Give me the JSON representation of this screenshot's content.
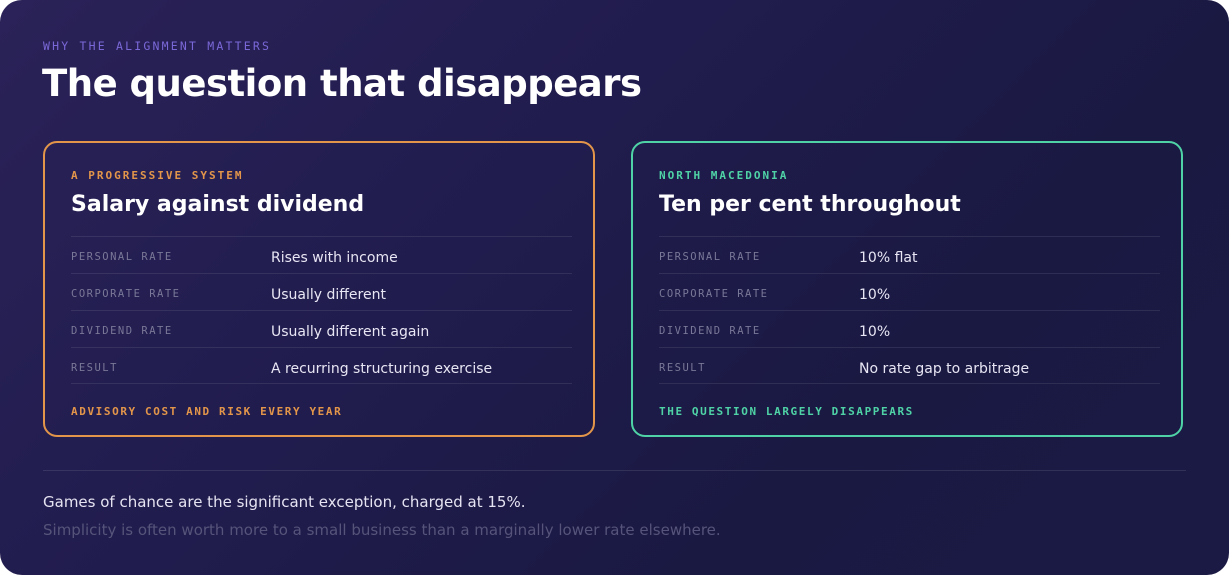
{
  "header": {
    "eyebrow": "WHY THE ALIGNMENT MATTERS",
    "title": "The question that disappears"
  },
  "cards": [
    {
      "kicker": "A PROGRESSIVE SYSTEM",
      "title": "Salary against dividend",
      "accent": "#e3964a",
      "rows": [
        {
          "label": "PERSONAL RATE",
          "value": "Rises with income"
        },
        {
          "label": "CORPORATE RATE",
          "value": "Usually different"
        },
        {
          "label": "DIVIDEND RATE",
          "value": "Usually different again"
        },
        {
          "label": "RESULT",
          "value": "A recurring structuring exercise"
        }
      ],
      "footer": "ADVISORY COST AND RISK EVERY YEAR"
    },
    {
      "kicker": "NORTH MACEDONIA",
      "title": "Ten per cent throughout",
      "accent": "#4fd3a6",
      "rows": [
        {
          "label": "PERSONAL RATE",
          "value": "10% flat"
        },
        {
          "label": "CORPORATE RATE",
          "value": "10%"
        },
        {
          "label": "DIVIDEND RATE",
          "value": "10%"
        },
        {
          "label": "RESULT",
          "value": "No rate gap to arbitrage"
        }
      ],
      "footer": "THE QUESTION LARGELY DISAPPEARS"
    }
  ],
  "footer": {
    "note": "Games of chance are the significant exception, charged at 15%.",
    "subnote": "Simplicity is often worth more to a small business than a marginally lower rate elsewhere."
  },
  "colors": {
    "eyebrow": "#7b68d8",
    "background": "#201c4d"
  }
}
